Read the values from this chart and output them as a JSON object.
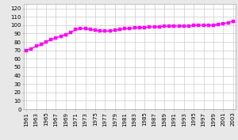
{
  "years": [
    1961,
    1962,
    1963,
    1964,
    1965,
    1966,
    1967,
    1968,
    1969,
    1970,
    1971,
    1972,
    1973,
    1974,
    1975,
    1976,
    1977,
    1978,
    1979,
    1980,
    1981,
    1982,
    1983,
    1984,
    1985,
    1986,
    1987,
    1988,
    1989,
    1990,
    1991,
    1992,
    1993,
    1994,
    1995,
    1996,
    1997,
    1998,
    1999,
    2000,
    2001,
    2002,
    2003
  ],
  "values": [
    70,
    72,
    75,
    77,
    80,
    83,
    85,
    87,
    89,
    91,
    95,
    96,
    96,
    95,
    94,
    93,
    93,
    93,
    94,
    95,
    96,
    96,
    97,
    97,
    97,
    98,
    98,
    98,
    99,
    99,
    99,
    99,
    99,
    99,
    100,
    100,
    100,
    100,
    100,
    101,
    102,
    103,
    105
  ],
  "line_color": "#ff00ff",
  "marker_color": "#ff00ff",
  "background_color": "#e8e8e8",
  "plot_bg_color": "#ffffff",
  "ylim": [
    0,
    125
  ],
  "yticks": [
    0,
    10,
    20,
    30,
    40,
    50,
    60,
    70,
    80,
    90,
    100,
    110,
    120
  ],
  "grid_color": "#cccccc",
  "tick_fontsize": 5.0,
  "line_width": 1.0,
  "marker_size": 2.5
}
